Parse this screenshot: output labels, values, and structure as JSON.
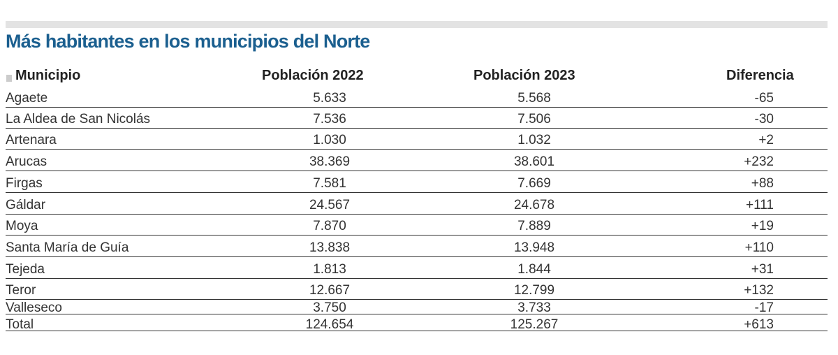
{
  "title": "Más habitantes en los municipios del Norte",
  "headers": [
    "Municipio",
    "Población 2022",
    "Población 2023",
    "Diferencia"
  ],
  "rows": [
    [
      "Agaete",
      "5.633",
      "5.568",
      "-65"
    ],
    [
      "La Aldea de San Nicolás",
      "7.536",
      "7.506",
      "-30"
    ],
    [
      "Artenara",
      "1.030",
      "1.032",
      "+2"
    ],
    [
      "Arucas",
      "38.369",
      "38.601",
      "+232"
    ],
    [
      "Firgas",
      "7.581",
      "7.669",
      "+88"
    ],
    [
      "Gáldar",
      "24.567",
      "24.678",
      "+111"
    ],
    [
      "Moya",
      "7.870",
      "7.889",
      "+19"
    ],
    [
      "Santa María de Guía",
      "13.838",
      "13.948",
      "+110"
    ],
    [
      "Tejeda",
      "1.813",
      "1.844",
      "+31"
    ],
    [
      "Teror",
      "12.667",
      "12.799",
      "+132"
    ],
    [
      "Valleseco",
      "3.750",
      "3.733",
      "-17"
    ],
    [
      "Total",
      "124.654",
      "125.267",
      "+613"
    ]
  ],
  "colors": {
    "title": "#1b5f8f"
  }
}
